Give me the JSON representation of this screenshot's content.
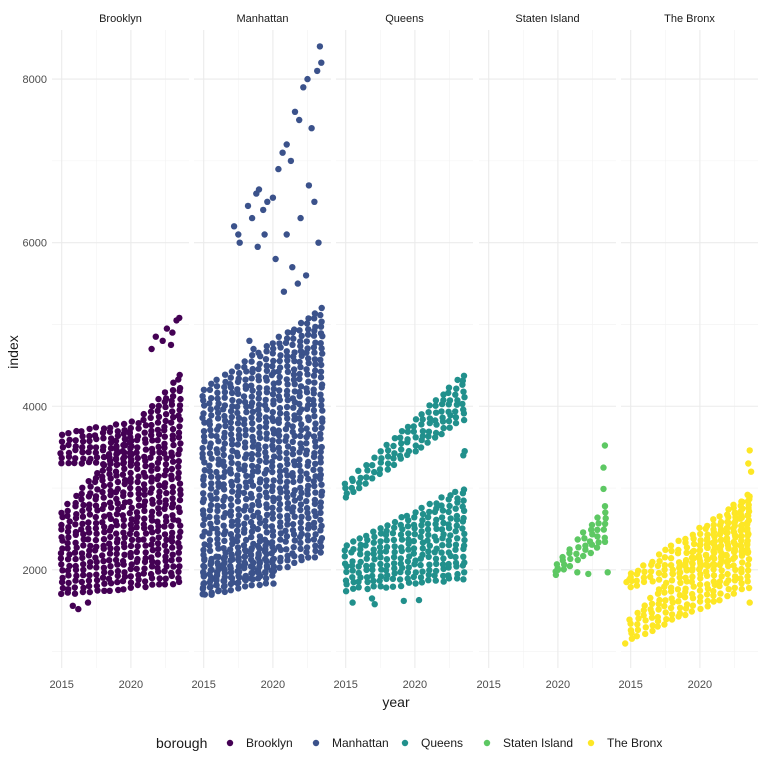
{
  "chart_data": {
    "type": "scatter",
    "xlabel": "year",
    "ylabel": "index",
    "xlim": [
      2014.3,
      2024.2
    ],
    "ylim": [
      800,
      8600
    ],
    "x_ticks": [
      2015,
      2020
    ],
    "y_ticks": [
      2000,
      4000,
      6000,
      8000
    ],
    "grid": true,
    "legend": {
      "title": "borough",
      "placement": "bottom"
    },
    "facets": [
      "Brooklyn",
      "Manhattan",
      "Queens",
      "Staten Island",
      "The Bronx"
    ],
    "colors": {
      "Brooklyn": "#440154",
      "Manhattan": "#3B528B",
      "Queens": "#21908C",
      "Staten Island": "#5DC863",
      "The Bronx": "#FDE725"
    },
    "series": [
      {
        "name": "Brooklyn",
        "bands": [
          {
            "x_start": 2015.0,
            "x_end": 2023.6,
            "y_start": 1700,
            "y_end": 1850,
            "top_start": 2700,
            "top_end": 4400
          },
          {
            "x_start": 2015.0,
            "x_end": 2020.0,
            "y_start": 3300,
            "y_end": 3300,
            "top_start": 3650,
            "top_end": 3800
          }
        ],
        "points": [
          {
            "x": 2021.5,
            "y": 4700
          },
          {
            "x": 2021.8,
            "y": 4850
          },
          {
            "x": 2022.3,
            "y": 4800
          },
          {
            "x": 2022.6,
            "y": 4950
          },
          {
            "x": 2023.0,
            "y": 4900
          },
          {
            "x": 2023.3,
            "y": 5050
          },
          {
            "x": 2023.5,
            "y": 5080
          },
          {
            "x": 2022.9,
            "y": 4750
          },
          {
            "x": 2015.8,
            "y": 1560
          },
          {
            "x": 2016.2,
            "y": 1520
          },
          {
            "x": 2016.9,
            "y": 1600
          }
        ]
      },
      {
        "name": "Manhattan",
        "bands": [
          {
            "x_start": 2015.0,
            "x_end": 2023.6,
            "y_start": 1700,
            "y_end": 2200,
            "top_start": 4200,
            "top_end": 5200
          },
          {
            "x_start": 2015.0,
            "x_end": 2020.0,
            "y_start": 1700,
            "y_end": 1850,
            "top_start": 2100,
            "top_end": 2300
          }
        ],
        "points": [
          {
            "x": 2017.2,
            "y": 6200
          },
          {
            "x": 2017.5,
            "y": 6100
          },
          {
            "x": 2017.6,
            "y": 6000
          },
          {
            "x": 2018.2,
            "y": 6450
          },
          {
            "x": 2018.5,
            "y": 6300
          },
          {
            "x": 2018.8,
            "y": 6600
          },
          {
            "x": 2019.0,
            "y": 6650
          },
          {
            "x": 2019.3,
            "y": 6400
          },
          {
            "x": 2019.6,
            "y": 6500
          },
          {
            "x": 2020.0,
            "y": 6550
          },
          {
            "x": 2020.4,
            "y": 6900
          },
          {
            "x": 2020.7,
            "y": 7100
          },
          {
            "x": 2021.0,
            "y": 7200
          },
          {
            "x": 2021.3,
            "y": 7000
          },
          {
            "x": 2021.6,
            "y": 7600
          },
          {
            "x": 2021.9,
            "y": 7500
          },
          {
            "x": 2022.2,
            "y": 7900
          },
          {
            "x": 2022.5,
            "y": 8000
          },
          {
            "x": 2022.8,
            "y": 7400
          },
          {
            "x": 2023.2,
            "y": 8100
          },
          {
            "x": 2023.4,
            "y": 8400
          },
          {
            "x": 2023.5,
            "y": 8200
          },
          {
            "x": 2020.2,
            "y": 5800
          },
          {
            "x": 2021.0,
            "y": 6100
          },
          {
            "x": 2021.4,
            "y": 5700
          },
          {
            "x": 2022.0,
            "y": 6300
          },
          {
            "x": 2022.6,
            "y": 6700
          },
          {
            "x": 2023.0,
            "y": 6500
          },
          {
            "x": 2019.4,
            "y": 6100
          },
          {
            "x": 2018.9,
            "y": 5950
          },
          {
            "x": 2021.8,
            "y": 5500
          },
          {
            "x": 2022.4,
            "y": 5600
          },
          {
            "x": 2020.8,
            "y": 5400
          },
          {
            "x": 2023.3,
            "y": 6000
          },
          {
            "x": 2018.3,
            "y": 4800
          },
          {
            "x": 2018.6,
            "y": 4700
          }
        ]
      },
      {
        "name": "Queens",
        "bands": [
          {
            "x_start": 2015.0,
            "x_end": 2023.6,
            "y_start": 1750,
            "y_end": 1900,
            "top_start": 2300,
            "top_end": 3000
          },
          {
            "x_start": 2015.0,
            "x_end": 2023.6,
            "y_start": 2900,
            "y_end": 3850,
            "top_start": 3050,
            "top_end": 4400
          }
        ],
        "points": [
          {
            "x": 2015.5,
            "y": 1600
          },
          {
            "x": 2016.9,
            "y": 1650
          },
          {
            "x": 2017.1,
            "y": 1580
          },
          {
            "x": 2019.2,
            "y": 1620
          },
          {
            "x": 2020.3,
            "y": 1630
          },
          {
            "x": 2023.5,
            "y": 3400
          },
          {
            "x": 2023.6,
            "y": 3450
          }
        ]
      },
      {
        "name": "Staten Island",
        "bands": [
          {
            "x_start": 2019.9,
            "x_end": 2023.6,
            "y_start": 1950,
            "y_end": 2350,
            "top_start": 2050,
            "top_end": 2800
          }
        ],
        "points": [
          {
            "x": 2023.4,
            "y": 3520
          },
          {
            "x": 2023.3,
            "y": 3250
          },
          {
            "x": 2023.3,
            "y": 2990
          },
          {
            "x": 2023.6,
            "y": 1970
          },
          {
            "x": 2022.2,
            "y": 1950
          },
          {
            "x": 2021.4,
            "y": 1970
          },
          {
            "x": 2020.0,
            "y": 2000
          }
        ]
      },
      {
        "name": "The Bronx",
        "bands": [
          {
            "x_start": 2015.0,
            "x_end": 2023.6,
            "y_start": 1150,
            "y_end": 1800,
            "top_start": 1400,
            "top_end": 2950
          },
          {
            "x_start": 2015.0,
            "x_end": 2023.6,
            "y_start": 1800,
            "y_end": 2200,
            "top_start": 1950,
            "top_end": 2900
          }
        ],
        "points": [
          {
            "x": 2014.6,
            "y": 1100
          },
          {
            "x": 2014.7,
            "y": 1850
          },
          {
            "x": 2014.9,
            "y": 1880
          },
          {
            "x": 2023.6,
            "y": 3460
          },
          {
            "x": 2023.5,
            "y": 3300
          },
          {
            "x": 2023.7,
            "y": 3200
          },
          {
            "x": 2023.6,
            "y": 1600
          }
        ]
      }
    ]
  }
}
